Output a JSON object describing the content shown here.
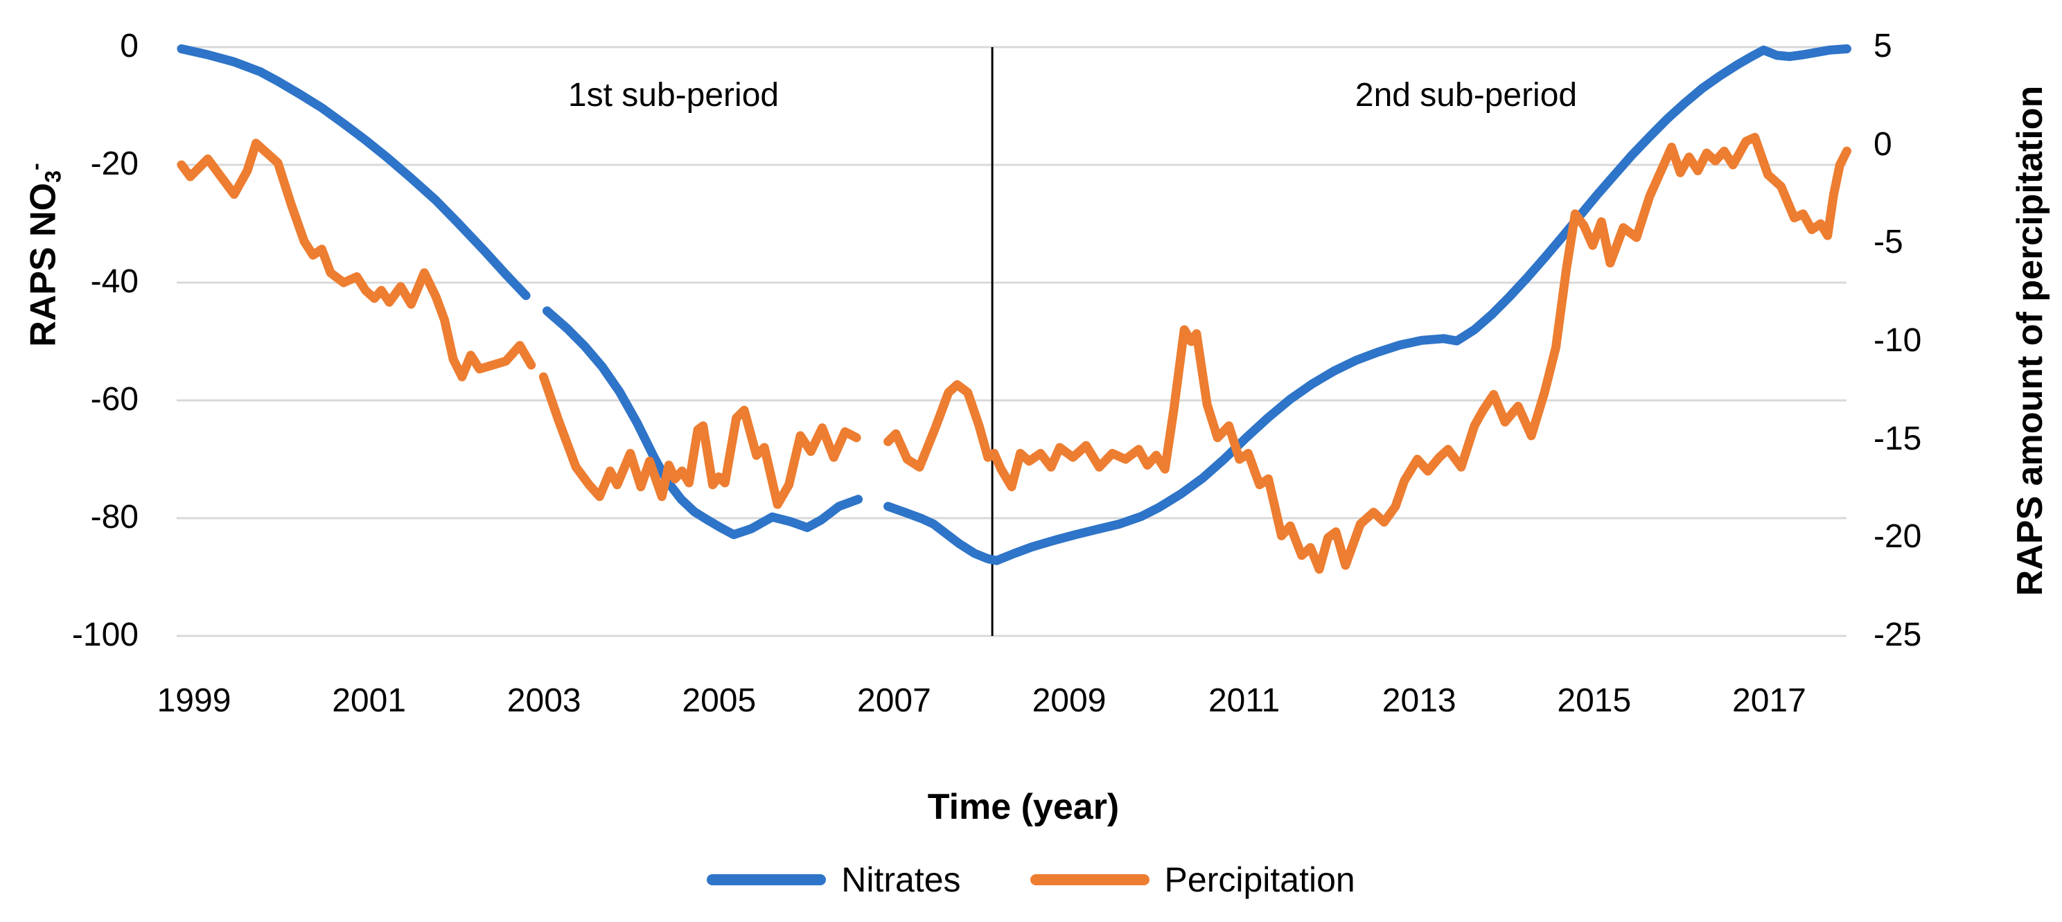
{
  "chart_data": {
    "type": "line",
    "title": "",
    "x_axis": {
      "label": "Time (year)",
      "tick_labels": [
        1999,
        2001,
        2003,
        2005,
        2007,
        2009,
        2011,
        2013,
        2015,
        2017
      ],
      "range": [
        1999,
        2018
      ],
      "grid": false
    },
    "y_axis_left": {
      "title_main": "RAPS NO",
      "title_sub": "3",
      "title_sup": "-",
      "tick_labels": [
        0,
        -20,
        -40,
        -60,
        -80,
        -100
      ],
      "range": [
        0,
        -100
      ],
      "grid": true,
      "gridline_color": "#d9d9d9"
    },
    "y_axis_right": {
      "title": "RAPS amount of percipitation",
      "tick_labels": [
        5,
        0,
        -5,
        -10,
        -15,
        -20,
        -25
      ],
      "range": [
        5,
        -25
      ]
    },
    "annotations": {
      "divider_year": 2008.25,
      "divider_color": "#000000",
      "period_1": "1st sub-period",
      "period_2": "2nd sub-period"
    },
    "legend_position": "bottom",
    "series": [
      {
        "name": "Nitrates",
        "axis": "left",
        "color": "#2e74c8",
        "segments": [
          [
            [
              1999.0,
              -0.3
            ],
            [
              1999.3,
              -1.3
            ],
            [
              1999.6,
              -2.5
            ],
            [
              1999.9,
              -4.2
            ],
            [
              2000.1,
              -5.8
            ],
            [
              2000.35,
              -8.0
            ],
            [
              2000.6,
              -10.3
            ],
            [
              2000.85,
              -13.0
            ],
            [
              2001.1,
              -15.8
            ],
            [
              2001.35,
              -18.8
            ],
            [
              2001.6,
              -22.0
            ],
            [
              2001.9,
              -26.0
            ],
            [
              2002.15,
              -29.8
            ],
            [
              2002.45,
              -34.5
            ],
            [
              2002.7,
              -38.6
            ],
            [
              2002.93,
              -42.2
            ]
          ],
          [
            [
              2003.17,
              -44.8
            ],
            [
              2003.4,
              -47.8
            ],
            [
              2003.6,
              -50.8
            ],
            [
              2003.8,
              -54.3
            ],
            [
              2004.0,
              -58.6
            ],
            [
              2004.2,
              -63.9
            ],
            [
              2004.4,
              -69.9
            ],
            [
              2004.55,
              -73.9
            ],
            [
              2004.7,
              -76.8
            ],
            [
              2004.85,
              -78.9
            ],
            [
              2005.0,
              -80.3
            ],
            [
              2005.15,
              -81.6
            ],
            [
              2005.3,
              -82.8
            ],
            [
              2005.5,
              -81.8
            ],
            [
              2005.74,
              -79.8
            ],
            [
              2005.95,
              -80.6
            ],
            [
              2006.14,
              -81.6
            ],
            [
              2006.3,
              -80.3
            ],
            [
              2006.5,
              -78.0
            ],
            [
              2006.72,
              -76.8
            ]
          ],
          [
            [
              2007.06,
              -78.0
            ],
            [
              2007.25,
              -79.0
            ],
            [
              2007.45,
              -80.1
            ],
            [
              2007.58,
              -81.0
            ],
            [
              2007.72,
              -82.6
            ],
            [
              2007.88,
              -84.4
            ],
            [
              2008.05,
              -86.0
            ],
            [
              2008.2,
              -86.9
            ],
            [
              2008.3,
              -87.2
            ],
            [
              2008.5,
              -86.0
            ],
            [
              2008.7,
              -84.9
            ],
            [
              2008.95,
              -83.8
            ],
            [
              2009.2,
              -82.8
            ],
            [
              2009.45,
              -81.9
            ],
            [
              2009.7,
              -81.0
            ],
            [
              2009.95,
              -79.7
            ],
            [
              2010.15,
              -78.2
            ],
            [
              2010.4,
              -75.9
            ],
            [
              2010.65,
              -73.2
            ],
            [
              2010.9,
              -69.9
            ],
            [
              2011.15,
              -66.3
            ],
            [
              2011.4,
              -62.9
            ],
            [
              2011.65,
              -59.8
            ],
            [
              2011.9,
              -57.2
            ],
            [
              2012.15,
              -55.0
            ],
            [
              2012.4,
              -53.2
            ],
            [
              2012.65,
              -51.8
            ],
            [
              2012.9,
              -50.6
            ],
            [
              2013.15,
              -49.8
            ],
            [
              2013.4,
              -49.5
            ],
            [
              2013.55,
              -49.9
            ],
            [
              2013.75,
              -48.0
            ],
            [
              2013.95,
              -45.4
            ],
            [
              2014.15,
              -42.4
            ],
            [
              2014.35,
              -39.2
            ],
            [
              2014.55,
              -35.8
            ],
            [
              2014.75,
              -32.3
            ],
            [
              2014.95,
              -28.7
            ],
            [
              2015.15,
              -25.1
            ],
            [
              2015.35,
              -21.7
            ],
            [
              2015.55,
              -18.3
            ],
            [
              2015.75,
              -15.2
            ],
            [
              2015.95,
              -12.2
            ],
            [
              2016.15,
              -9.5
            ],
            [
              2016.35,
              -7.0
            ],
            [
              2016.55,
              -4.9
            ],
            [
              2016.75,
              -3.0
            ],
            [
              2016.9,
              -1.7
            ],
            [
              2017.05,
              -0.5
            ],
            [
              2017.2,
              -1.4
            ],
            [
              2017.35,
              -1.6
            ],
            [
              2017.5,
              -1.3
            ],
            [
              2017.65,
              -0.9
            ],
            [
              2017.8,
              -0.5
            ],
            [
              2018.0,
              -0.3
            ]
          ]
        ]
      },
      {
        "name": "Percipitation",
        "axis": "right",
        "color": "#ed7d31",
        "segments": [
          [
            [
              1999.0,
              -1.0
            ],
            [
              1999.1,
              -1.6
            ],
            [
              1999.3,
              -0.7
            ],
            [
              1999.45,
              -1.6
            ],
            [
              1999.6,
              -2.5
            ],
            [
              1999.75,
              -1.3
            ],
            [
              1999.85,
              0.1
            ],
            [
              2000.0,
              -0.5
            ],
            [
              2000.1,
              -0.9
            ],
            [
              2000.25,
              -3.0
            ],
            [
              2000.4,
              -4.9
            ],
            [
              2000.5,
              -5.6
            ],
            [
              2000.6,
              -5.3
            ],
            [
              2000.7,
              -6.5
            ],
            [
              2000.85,
              -7.0
            ],
            [
              2001.0,
              -6.7
            ],
            [
              2001.1,
              -7.4
            ],
            [
              2001.2,
              -7.8
            ],
            [
              2001.28,
              -7.4
            ],
            [
              2001.37,
              -8.0
            ],
            [
              2001.5,
              -7.2
            ],
            [
              2001.62,
              -8.1
            ],
            [
              2001.77,
              -6.5
            ],
            [
              2001.9,
              -7.7
            ],
            [
              2002.0,
              -8.9
            ],
            [
              2002.1,
              -10.9
            ],
            [
              2002.2,
              -11.8
            ],
            [
              2002.3,
              -10.7
            ],
            [
              2002.4,
              -11.4
            ],
            [
              2002.55,
              -11.2
            ],
            [
              2002.7,
              -11.0
            ],
            [
              2002.86,
              -10.2
            ],
            [
              2002.99,
              -11.2
            ]
          ],
          [
            [
              2003.13,
              -11.8
            ],
            [
              2003.3,
              -14.0
            ],
            [
              2003.5,
              -16.4
            ],
            [
              2003.65,
              -17.3
            ],
            [
              2003.77,
              -17.9
            ],
            [
              2003.89,
              -16.6
            ],
            [
              2003.97,
              -17.3
            ],
            [
              2004.12,
              -15.7
            ],
            [
              2004.24,
              -17.4
            ],
            [
              2004.34,
              -16.1
            ],
            [
              2004.48,
              -17.9
            ],
            [
              2004.56,
              -16.3
            ],
            [
              2004.63,
              -17.0
            ],
            [
              2004.71,
              -16.6
            ],
            [
              2004.79,
              -17.2
            ],
            [
              2004.89,
              -14.5
            ],
            [
              2004.95,
              -14.3
            ],
            [
              2005.06,
              -17.3
            ],
            [
              2005.13,
              -16.9
            ],
            [
              2005.2,
              -17.2
            ],
            [
              2005.33,
              -13.9
            ],
            [
              2005.42,
              -13.5
            ],
            [
              2005.56,
              -15.8
            ],
            [
              2005.65,
              -15.4
            ],
            [
              2005.8,
              -18.3
            ],
            [
              2005.93,
              -17.3
            ],
            [
              2006.06,
              -14.8
            ],
            [
              2006.18,
              -15.6
            ],
            [
              2006.31,
              -14.4
            ],
            [
              2006.44,
              -15.9
            ],
            [
              2006.57,
              -14.6
            ],
            [
              2006.7,
              -14.9
            ]
          ],
          [
            [
              2007.06,
              -15.1
            ],
            [
              2007.15,
              -14.7
            ],
            [
              2007.28,
              -16.0
            ],
            [
              2007.42,
              -16.4
            ],
            [
              2007.6,
              -14.4
            ],
            [
              2007.75,
              -12.6
            ],
            [
              2007.85,
              -12.2
            ],
            [
              2007.97,
              -12.6
            ],
            [
              2008.1,
              -14.3
            ],
            [
              2008.2,
              -15.9
            ],
            [
              2008.27,
              -15.7
            ],
            [
              2008.35,
              -16.5
            ],
            [
              2008.47,
              -17.4
            ],
            [
              2008.57,
              -15.7
            ],
            [
              2008.67,
              -16.1
            ],
            [
              2008.8,
              -15.7
            ],
            [
              2008.92,
              -16.4
            ],
            [
              2009.02,
              -15.4
            ],
            [
              2009.17,
              -15.9
            ],
            [
              2009.32,
              -15.3
            ],
            [
              2009.47,
              -16.4
            ],
            [
              2009.62,
              -15.7
            ],
            [
              2009.77,
              -16.0
            ],
            [
              2009.92,
              -15.5
            ],
            [
              2010.02,
              -16.3
            ],
            [
              2010.12,
              -15.8
            ],
            [
              2010.22,
              -16.5
            ],
            [
              2010.32,
              -13.5
            ],
            [
              2010.44,
              -9.4
            ],
            [
              2010.52,
              -10.0
            ],
            [
              2010.58,
              -9.6
            ],
            [
              2010.7,
              -13.2
            ],
            [
              2010.82,
              -14.9
            ],
            [
              2010.95,
              -14.3
            ],
            [
              2011.07,
              -16.0
            ],
            [
              2011.17,
              -15.7
            ],
            [
              2011.3,
              -17.3
            ],
            [
              2011.4,
              -17.0
            ],
            [
              2011.55,
              -19.9
            ],
            [
              2011.65,
              -19.4
            ],
            [
              2011.78,
              -20.9
            ],
            [
              2011.88,
              -20.5
            ],
            [
              2011.98,
              -21.6
            ],
            [
              2012.08,
              -20.0
            ],
            [
              2012.17,
              -19.7
            ],
            [
              2012.28,
              -21.4
            ],
            [
              2012.45,
              -19.3
            ],
            [
              2012.6,
              -18.7
            ],
            [
              2012.72,
              -19.2
            ],
            [
              2012.85,
              -18.4
            ],
            [
              2012.95,
              -17.1
            ],
            [
              2013.1,
              -16.0
            ],
            [
              2013.22,
              -16.6
            ],
            [
              2013.35,
              -15.9
            ],
            [
              2013.45,
              -15.5
            ],
            [
              2013.6,
              -16.4
            ],
            [
              2013.75,
              -14.3
            ],
            [
              2013.85,
              -13.5
            ],
            [
              2013.97,
              -12.7
            ],
            [
              2014.1,
              -14.1
            ],
            [
              2014.25,
              -13.3
            ],
            [
              2014.4,
              -14.8
            ],
            [
              2014.55,
              -12.6
            ],
            [
              2014.68,
              -10.3
            ],
            [
              2014.8,
              -6.3
            ],
            [
              2014.9,
              -3.5
            ],
            [
              2015.0,
              -4.1
            ],
            [
              2015.1,
              -5.1
            ],
            [
              2015.2,
              -3.9
            ],
            [
              2015.3,
              -6.0
            ],
            [
              2015.45,
              -4.2
            ],
            [
              2015.6,
              -4.7
            ],
            [
              2015.75,
              -2.6
            ],
            [
              2015.9,
              -1.1
            ],
            [
              2016.0,
              -0.1
            ],
            [
              2016.1,
              -1.4
            ],
            [
              2016.2,
              -0.6
            ],
            [
              2016.3,
              -1.3
            ],
            [
              2016.4,
              -0.4
            ],
            [
              2016.5,
              -0.8
            ],
            [
              2016.6,
              -0.3
            ],
            [
              2016.7,
              -1.0
            ],
            [
              2016.85,
              0.2
            ],
            [
              2016.95,
              0.4
            ],
            [
              2017.1,
              -1.5
            ],
            [
              2017.25,
              -2.1
            ],
            [
              2017.4,
              -3.7
            ],
            [
              2017.5,
              -3.5
            ],
            [
              2017.6,
              -4.3
            ],
            [
              2017.7,
              -4.0
            ],
            [
              2017.78,
              -4.6
            ],
            [
              2017.85,
              -2.5
            ],
            [
              2017.92,
              -1.0
            ],
            [
              2018.0,
              -0.3
            ]
          ]
        ]
      }
    ]
  }
}
